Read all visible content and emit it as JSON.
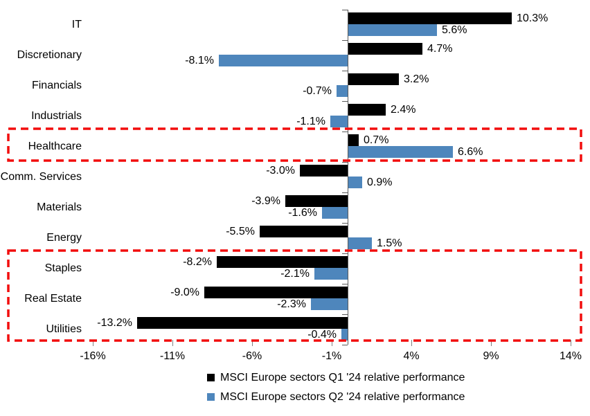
{
  "chart_data": {
    "type": "bar",
    "orientation": "horizontal",
    "title": "",
    "xlabel": "",
    "ylabel": "",
    "xlim": [
      -16.4,
      14.1
    ],
    "grid": false,
    "legend_position": "bottom",
    "background_color": "#ffffff",
    "categories": [
      "IT",
      "Discretionary",
      "Financials",
      "Industrials",
      "Healthcare",
      "Comm. Services",
      "Materials",
      "Energy",
      "Staples",
      "Real Estate",
      "Utilities"
    ],
    "series": [
      {
        "name": "MSCI Europe sectors Q1 '24 relative performance",
        "color": "#000000",
        "values": [
          10.3,
          4.7,
          3.2,
          2.4,
          0.7,
          -3.0,
          -3.9,
          -5.5,
          -8.2,
          -9.0,
          -13.2
        ],
        "labels": [
          "10.3%",
          "4.7%",
          "3.2%",
          "2.4%",
          "0.7%",
          "-3.0%",
          "-3.9%",
          "-5.5%",
          "-8.2%",
          "-9.0%",
          "-13.2%"
        ]
      },
      {
        "name": "MSCI Europe sectors Q2 '24 relative performance",
        "color": "#4E86BC",
        "values": [
          5.6,
          -8.1,
          -0.7,
          -1.1,
          6.6,
          0.9,
          -1.6,
          1.5,
          -2.1,
          -2.3,
          -0.4
        ],
        "labels": [
          "5.6%",
          "-8.1%",
          "-0.7%",
          "-1.1%",
          "6.6%",
          "0.9%",
          "-1.6%",
          "1.5%",
          "-2.1%",
          "-2.3%",
          "-0.4%"
        ]
      }
    ],
    "x_ticks": [
      -16,
      -11,
      -6,
      -1,
      4,
      9,
      14
    ],
    "x_tick_labels": [
      "-16%",
      "-11%",
      "-6%",
      "-1%",
      "4%",
      "9%",
      "14%"
    ],
    "highlights": [
      {
        "name": "highlight-box-healthcare",
        "start_category": "Healthcare",
        "end_category": "Healthcare",
        "color": "#F20D0D"
      },
      {
        "name": "highlight-box-defensives",
        "start_category": "Staples",
        "end_category": "Utilities",
        "color": "#F20D0D"
      }
    ]
  }
}
